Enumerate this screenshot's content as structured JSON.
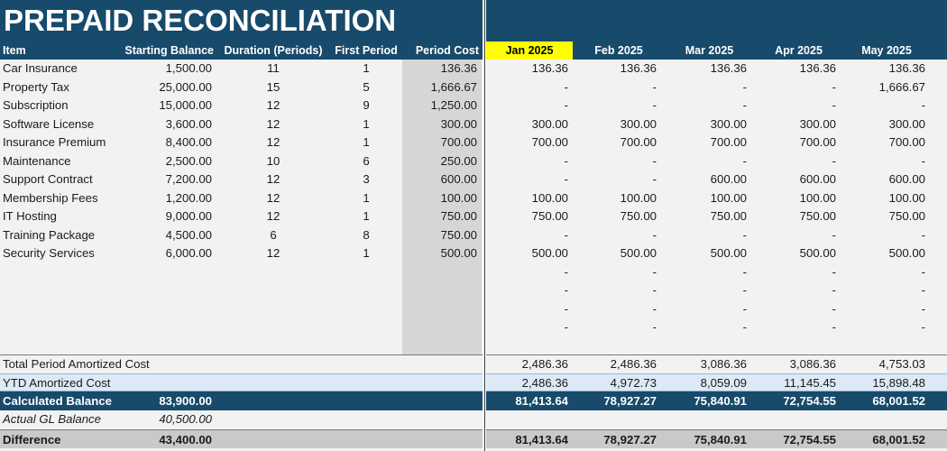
{
  "title": "PREPAID RECONCILIATION",
  "headers": {
    "item": "Item",
    "starting_balance": "Starting Balance",
    "duration": "Duration (Periods)",
    "first_period": "First Period",
    "period_cost": "Period Cost",
    "months": [
      "Jan 2025",
      "Feb 2025",
      "Mar 2025",
      "Apr 2025",
      "May 2025"
    ]
  },
  "rows": [
    {
      "item": "Car Insurance",
      "start": "1,500.00",
      "duration": "11",
      "first": "1",
      "cost": "136.36",
      "months": [
        "136.36",
        "136.36",
        "136.36",
        "136.36",
        "136.36"
      ]
    },
    {
      "item": "Property Tax",
      "start": "25,000.00",
      "duration": "15",
      "first": "5",
      "cost": "1,666.67",
      "months": [
        "-",
        "-",
        "-",
        "-",
        "1,666.67"
      ]
    },
    {
      "item": "Subscription",
      "start": "15,000.00",
      "duration": "12",
      "first": "9",
      "cost": "1,250.00",
      "months": [
        "-",
        "-",
        "-",
        "-",
        "-"
      ]
    },
    {
      "item": "Software License",
      "start": "3,600.00",
      "duration": "12",
      "first": "1",
      "cost": "300.00",
      "months": [
        "300.00",
        "300.00",
        "300.00",
        "300.00",
        "300.00"
      ]
    },
    {
      "item": "Insurance Premium",
      "start": "8,400.00",
      "duration": "12",
      "first": "1",
      "cost": "700.00",
      "months": [
        "700.00",
        "700.00",
        "700.00",
        "700.00",
        "700.00"
      ]
    },
    {
      "item": "Maintenance",
      "start": "2,500.00",
      "duration": "10",
      "first": "6",
      "cost": "250.00",
      "months": [
        "-",
        "-",
        "-",
        "-",
        "-"
      ]
    },
    {
      "item": "Support Contract",
      "start": "7,200.00",
      "duration": "12",
      "first": "3",
      "cost": "600.00",
      "months": [
        "-",
        "-",
        "600.00",
        "600.00",
        "600.00"
      ]
    },
    {
      "item": "Membership Fees",
      "start": "1,200.00",
      "duration": "12",
      "first": "1",
      "cost": "100.00",
      "months": [
        "100.00",
        "100.00",
        "100.00",
        "100.00",
        "100.00"
      ]
    },
    {
      "item": "IT Hosting",
      "start": "9,000.00",
      "duration": "12",
      "first": "1",
      "cost": "750.00",
      "months": [
        "750.00",
        "750.00",
        "750.00",
        "750.00",
        "750.00"
      ]
    },
    {
      "item": "Training Package",
      "start": "4,500.00",
      "duration": "6",
      "first": "8",
      "cost": "750.00",
      "months": [
        "-",
        "-",
        "-",
        "-",
        "-"
      ]
    },
    {
      "item": "Security Services",
      "start": "6,000.00",
      "duration": "12",
      "first": "1",
      "cost": "500.00",
      "months": [
        "500.00",
        "500.00",
        "500.00",
        "500.00",
        "500.00"
      ]
    },
    {
      "item": "",
      "start": "",
      "duration": "",
      "first": "",
      "cost": "",
      "months": [
        "-",
        "-",
        "-",
        "-",
        "-"
      ]
    },
    {
      "item": "",
      "start": "",
      "duration": "",
      "first": "",
      "cost": "",
      "months": [
        "-",
        "-",
        "-",
        "-",
        "-"
      ]
    },
    {
      "item": "",
      "start": "",
      "duration": "",
      "first": "",
      "cost": "",
      "months": [
        "-",
        "-",
        "-",
        "-",
        "-"
      ]
    },
    {
      "item": "",
      "start": "",
      "duration": "",
      "first": "",
      "cost": "",
      "months": [
        "-",
        "-",
        "-",
        "-",
        "-"
      ]
    }
  ],
  "totals": {
    "total_label": "Total Period Amortized Cost",
    "total_months": [
      "2,486.36",
      "2,486.36",
      "3,086.36",
      "3,086.36",
      "4,753.03"
    ],
    "ytd_label": "YTD Amortized Cost",
    "ytd_months": [
      "2,486.36",
      "4,972.73",
      "8,059.09",
      "11,145.45",
      "15,898.48"
    ],
    "calc_label": "Calculated Balance",
    "calc_start": "83,900.00",
    "calc_months": [
      "81,413.64",
      "78,927.27",
      "75,840.91",
      "72,754.55",
      "68,001.52"
    ],
    "gl_label": "Actual GL Balance",
    "gl_start": "40,500.00",
    "diff_label": "Difference",
    "diff_start": "43,400.00",
    "diff_months": [
      "81,413.64",
      "78,927.27",
      "75,840.91",
      "72,754.55",
      "68,001.52"
    ]
  },
  "colors": {
    "header_bg": "#174a6b",
    "current_month_highlight": "#ffff00",
    "ytd_row_bg": "#dce9f6",
    "period_cost_col_bg": "#d6d6d6",
    "difference_row_bg": "#c9c9c9"
  }
}
